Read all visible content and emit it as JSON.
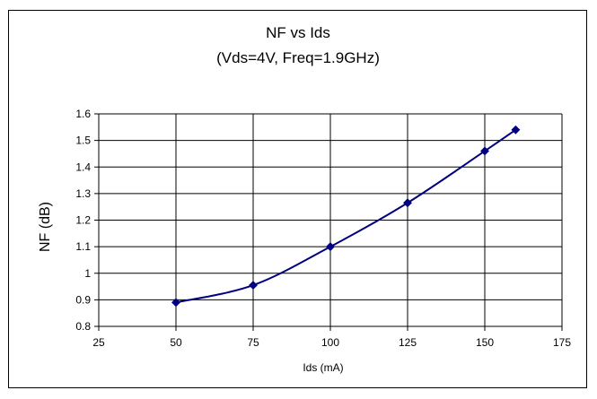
{
  "chart_data": {
    "type": "line",
    "title": "NF vs Ids",
    "subtitle": "(Vds=4V, Freq=1.9GHz)",
    "xlabel": "Ids (mA)",
    "ylabel": "NF (dB)",
    "xlim": [
      25,
      175
    ],
    "ylim": [
      0.8,
      1.6
    ],
    "x_ticks": [
      25,
      50,
      75,
      100,
      125,
      150,
      175
    ],
    "y_ticks": [
      0.8,
      0.9,
      1,
      1.1,
      1.2,
      1.3,
      1.4,
      1.5,
      1.6
    ],
    "x_tick_labels": [
      "25",
      "50",
      "75",
      "100",
      "125",
      "150",
      "175"
    ],
    "y_tick_labels": [
      "0.8",
      "0.9",
      "1",
      "1.1",
      "1.2",
      "1.3",
      "1.4",
      "1.5",
      "1.6"
    ],
    "grid": true,
    "legend": "none",
    "series": [
      {
        "x": [
          50,
          75,
          100,
          125,
          150,
          160
        ],
        "y": [
          0.89,
          0.955,
          1.1,
          1.265,
          1.46,
          1.54
        ],
        "color": "#000080"
      }
    ]
  }
}
